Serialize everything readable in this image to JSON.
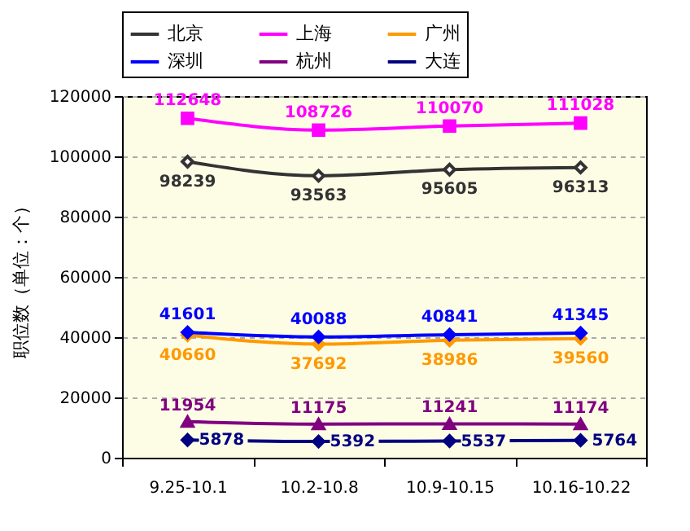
{
  "chart_data": {
    "type": "line",
    "ylabel": "职位数（单位：个）",
    "categories": [
      "9.25-10.1",
      "10.2-10.8",
      "10.9-10.15",
      "10.16-10.22"
    ],
    "series": [
      {
        "name": "北京",
        "color": "#333333",
        "marker": "diamond",
        "values": [
          98239,
          93563,
          95605,
          96313
        ]
      },
      {
        "name": "上海",
        "color": "#ff00ff",
        "marker": "square",
        "values": [
          112648,
          108726,
          110070,
          111028
        ]
      },
      {
        "name": "广州",
        "color": "#ff9900",
        "marker": "diamond",
        "values": [
          40660,
          37692,
          38986,
          39560
        ]
      },
      {
        "name": "深圳",
        "color": "#0000ff",
        "marker": "diamond",
        "values": [
          41601,
          40088,
          40841,
          41345
        ]
      },
      {
        "name": "杭州",
        "color": "#800080",
        "marker": "triangle",
        "values": [
          11954,
          11175,
          11241,
          11174
        ]
      },
      {
        "name": "大连",
        "color": "#000080",
        "marker": "diamond",
        "values": [
          5878,
          5392,
          5537,
          5764
        ]
      }
    ],
    "ylim": [
      0,
      120000
    ],
    "yticks": [
      0,
      20000,
      40000,
      60000,
      80000,
      100000,
      120000
    ],
    "grid": "y",
    "legend": "top",
    "data_labels": true,
    "line_style": "solid"
  }
}
